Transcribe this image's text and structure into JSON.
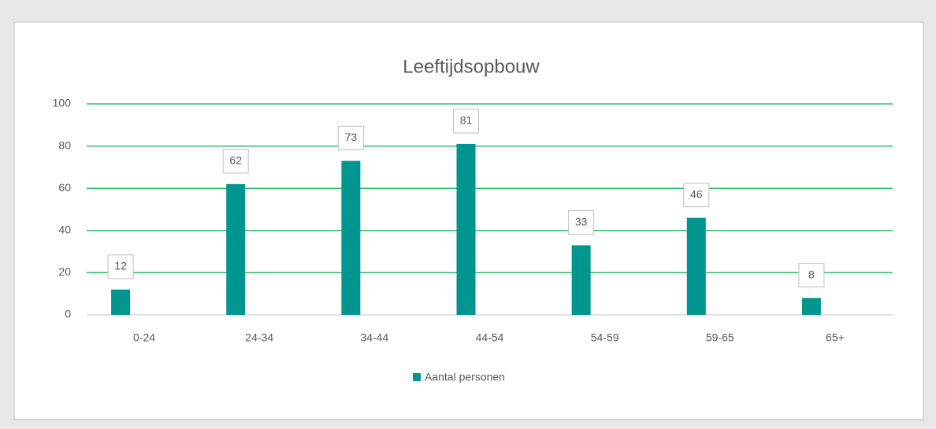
{
  "chart_data": {
    "type": "bar",
    "title": "Leeftijdsopbouw",
    "categories": [
      "0-24",
      "24-34",
      "34-44",
      "44-54",
      "54-59",
      "59-65",
      "65+"
    ],
    "series": [
      {
        "name": "Aantal personen",
        "color": "#00968f",
        "values": [
          12,
          62,
          73,
          81,
          33,
          46,
          8
        ]
      }
    ],
    "ylim": [
      0,
      100
    ],
    "yticks": [
      0,
      20,
      40,
      60,
      80,
      100
    ],
    "grid": true,
    "grid_color": "#2ebd6b",
    "legend": "bottom"
  }
}
